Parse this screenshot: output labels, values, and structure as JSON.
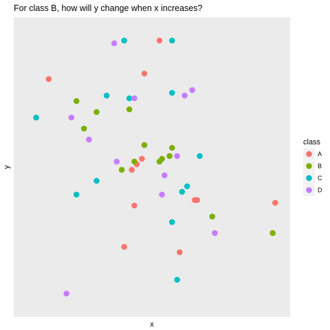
{
  "chart_data": {
    "type": "scatter",
    "title": "For class B, how will y change when x increases?",
    "xlabel": "x",
    "ylabel": "y",
    "xlim": [
      0,
      100
    ],
    "ylim": [
      0,
      100
    ],
    "grid": false,
    "legend_position": "right",
    "legend_title": "class",
    "series": [
      {
        "name": "A",
        "color": "#F8766D",
        "points": [
          [
            53,
            96
          ],
          [
            47,
            84
          ],
          [
            9,
            82
          ],
          [
            46,
            53
          ],
          [
            44,
            51
          ],
          [
            42,
            49
          ],
          [
            68,
            38
          ],
          [
            67,
            38
          ],
          [
            43,
            36
          ],
          [
            99,
            37
          ],
          [
            39,
            21
          ],
          [
            61,
            19
          ]
        ]
      },
      {
        "name": "B",
        "color": "#7CAE00",
        "points": [
          [
            20,
            74
          ],
          [
            28,
            70
          ],
          [
            41,
            71
          ],
          [
            23,
            64
          ],
          [
            47,
            58
          ],
          [
            58,
            57
          ],
          [
            57,
            54
          ],
          [
            54,
            53
          ],
          [
            53,
            52
          ],
          [
            43,
            52
          ],
          [
            38,
            49
          ],
          [
            74,
            32
          ],
          [
            98,
            26
          ]
        ]
      },
      {
        "name": "C",
        "color": "#00BFC4",
        "points": [
          [
            39,
            96
          ],
          [
            58,
            96
          ],
          [
            32,
            76
          ],
          [
            41,
            75
          ],
          [
            58,
            77
          ],
          [
            4,
            68
          ],
          [
            69,
            54
          ],
          [
            28,
            45
          ],
          [
            64,
            43
          ],
          [
            62,
            41
          ],
          [
            20,
            40
          ],
          [
            58,
            30
          ],
          [
            60,
            9
          ]
        ]
      },
      {
        "name": "D",
        "color": "#C77CFF",
        "points": [
          [
            35,
            95
          ],
          [
            66,
            78
          ],
          [
            63,
            76
          ],
          [
            43,
            75
          ],
          [
            18,
            68
          ],
          [
            25,
            60
          ],
          [
            36,
            52
          ],
          [
            60,
            54
          ],
          [
            55,
            47
          ],
          [
            54,
            40
          ],
          [
            75,
            26
          ],
          [
            16,
            4
          ]
        ]
      }
    ]
  }
}
